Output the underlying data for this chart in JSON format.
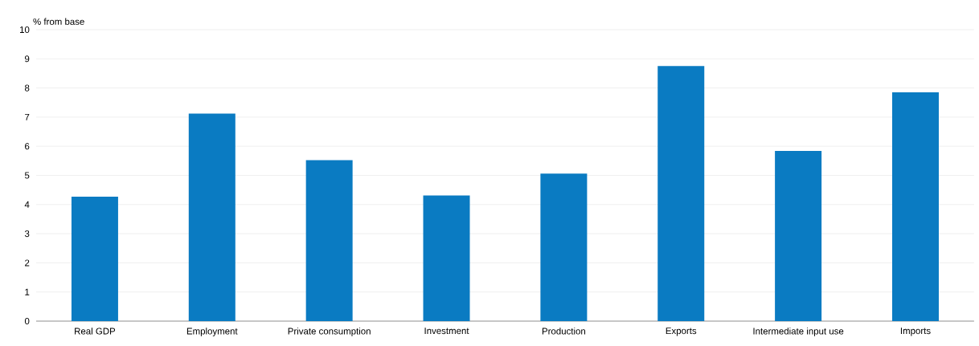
{
  "chart_data": {
    "type": "bar",
    "ylabel": "% from base",
    "categories": [
      "Real GDP",
      "Employment",
      "Private consumption",
      "Investment",
      "Production",
      "Exports",
      "Intermediate input use",
      "Imports"
    ],
    "values": [
      4.27,
      7.12,
      5.52,
      4.31,
      5.06,
      8.75,
      5.84,
      7.85
    ],
    "color": "#0a7bc2",
    "ylim": [
      0,
      10
    ],
    "yticks": [
      0,
      1,
      2,
      3,
      4,
      5,
      6,
      7,
      8,
      9,
      10
    ],
    "grid": "y"
  }
}
